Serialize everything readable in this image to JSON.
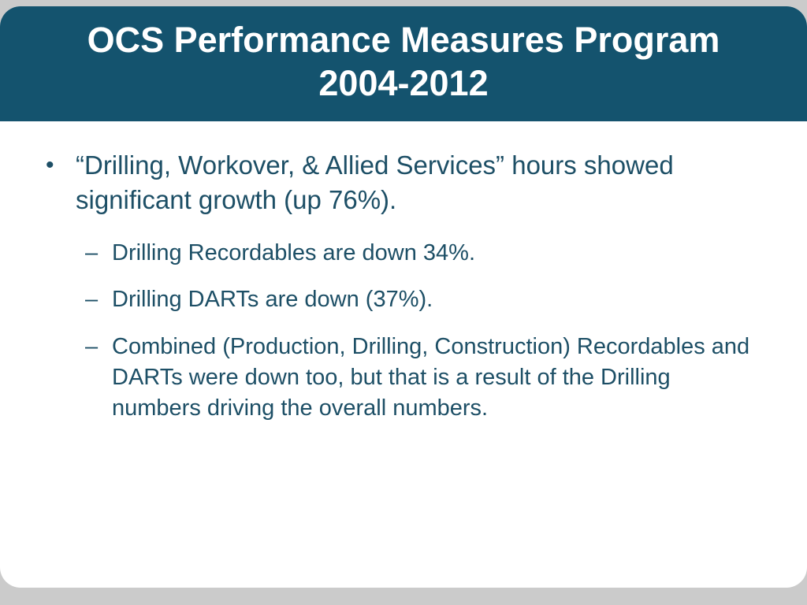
{
  "slide": {
    "title": {
      "line1": "OCS Performance Measures Program",
      "line2": "2004-2012"
    },
    "bullet_glyph": "•",
    "sub_bullet_glyph": "–",
    "main_bullet": "“Drilling, Workover, & Allied Services” hours showed significant growth (up 76%).",
    "sub_bullets": [
      {
        "text": "Drilling Recordables are down 34%."
      },
      {
        "text": "Drilling DARTs are down (37%)."
      },
      {
        "text": "Combined (Production, Drilling, Construction) Recordables and DARTs were down too, but that is a result of the Drilling numbers driving the overall numbers."
      }
    ],
    "colors": {
      "header_bg": "#14536e",
      "body_text": "#1d4f66",
      "page_bg": "#cbcbcb",
      "slide_bg": "#ffffff"
    }
  }
}
